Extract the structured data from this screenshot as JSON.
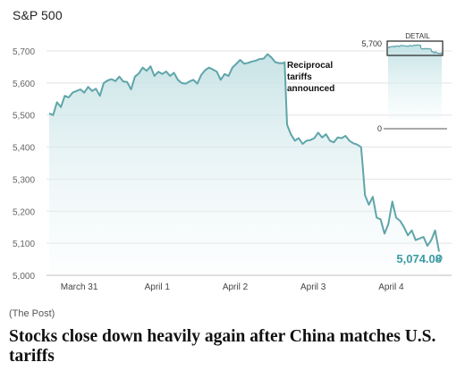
{
  "chart_data": {
    "type": "area",
    "title": "S&P 500",
    "ylim": [
      5000,
      5700
    ],
    "yticks": [
      5000,
      5100,
      5200,
      5300,
      5400,
      5500,
      5600,
      5700
    ],
    "ytick_labels": [
      "5,000",
      "5,100",
      "5,200",
      "5,300",
      "5,400",
      "5,500",
      "5,600",
      "5,700"
    ],
    "x_range": [
      0,
      5
    ],
    "xticks": [
      {
        "x": 0.5,
        "label": "March 31"
      },
      {
        "x": 1.5,
        "label": "April 1"
      },
      {
        "x": 2.5,
        "label": "April 2"
      },
      {
        "x": 3.5,
        "label": "April 3"
      },
      {
        "x": 4.5,
        "label": "April 4"
      }
    ],
    "grid": true,
    "series": [
      {
        "x": [
          0.0,
          0.05,
          0.1,
          0.15,
          0.2,
          0.25,
          0.3,
          0.35,
          0.4,
          0.45,
          0.5,
          0.55,
          0.6,
          0.65,
          0.7,
          0.75,
          0.8,
          0.85,
          0.9,
          0.95,
          1.0,
          1.05,
          1.1,
          1.15,
          1.2,
          1.25,
          1.3,
          1.35,
          1.4,
          1.45,
          1.5,
          1.55,
          1.6,
          1.65,
          1.7,
          1.75,
          1.8,
          1.85,
          1.9,
          1.95,
          2.0,
          2.05,
          2.1,
          2.15,
          2.2,
          2.25,
          2.3,
          2.35,
          2.4,
          2.45,
          2.5,
          2.55,
          2.6,
          2.65,
          2.7,
          2.75,
          2.8,
          2.85,
          2.9,
          2.95,
          3.0,
          3.02,
          3.05,
          3.1,
          3.15,
          3.2,
          3.25,
          3.3,
          3.35,
          3.4,
          3.45,
          3.5,
          3.55,
          3.6,
          3.65,
          3.7,
          3.75,
          3.8,
          3.85,
          3.9,
          3.95,
          4.0,
          4.02,
          4.05,
          4.1,
          4.15,
          4.2,
          4.25,
          4.3,
          4.35,
          4.4,
          4.45,
          4.5,
          4.55,
          4.6,
          4.65,
          4.7,
          4.75,
          4.8,
          4.85,
          4.9,
          4.95,
          5.0
        ],
        "values": [
          5505,
          5500,
          5540,
          5525,
          5560,
          5555,
          5570,
          5575,
          5580,
          5570,
          5588,
          5575,
          5582,
          5560,
          5600,
          5608,
          5612,
          5606,
          5620,
          5605,
          5603,
          5580,
          5620,
          5630,
          5648,
          5638,
          5652,
          5622,
          5635,
          5628,
          5636,
          5622,
          5632,
          5610,
          5600,
          5598,
          5605,
          5610,
          5598,
          5625,
          5640,
          5648,
          5642,
          5635,
          5610,
          5628,
          5622,
          5648,
          5660,
          5672,
          5660,
          5663,
          5667,
          5670,
          5675,
          5676,
          5690,
          5680,
          5665,
          5662,
          5662,
          5665,
          5470,
          5440,
          5420,
          5428,
          5410,
          5420,
          5422,
          5428,
          5445,
          5430,
          5440,
          5420,
          5415,
          5430,
          5428,
          5435,
          5420,
          5412,
          5408,
          5400,
          5345,
          5250,
          5220,
          5245,
          5180,
          5175,
          5130,
          5160,
          5230,
          5180,
          5170,
          5150,
          5125,
          5140,
          5110,
          5115,
          5120,
          5092,
          5110,
          5140,
          5074
        ]
      }
    ],
    "end_label": "5,074.08",
    "annotation": "Reciprocal tariffs announced",
    "detail_inset": {
      "title": "DETAIL",
      "ytick_labels": [
        "5,700",
        "0"
      ]
    }
  },
  "source": "(The Post)",
  "headline": "Stocks close down heavily again after China matches U.S. tariffs"
}
